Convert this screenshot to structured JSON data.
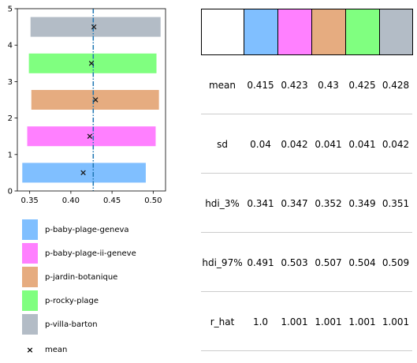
{
  "chart_data": {
    "type": "forest",
    "xlim": [
      0.335,
      0.515
    ],
    "ylim": [
      0,
      5
    ],
    "xticks": [
      "0.35",
      "0.40",
      "0.45",
      "0.50"
    ],
    "xtick_values": [
      0.35,
      0.4,
      0.45,
      0.5
    ],
    "yticks": [
      "0",
      "1",
      "2",
      "3",
      "4",
      "5"
    ],
    "ytick_values": [
      0,
      1,
      2,
      3,
      4,
      5
    ],
    "reference_line": 0.4272,
    "series": [
      {
        "name": "p-baby-plage-geneva",
        "color": "#80bfff",
        "hdi_low": 0.341,
        "hdi_high": 0.491,
        "mean": 0.415,
        "y": 0.5
      },
      {
        "name": "p-baby-plage-ii-geneve",
        "color": "#ff80ff",
        "hdi_low": 0.347,
        "hdi_high": 0.503,
        "mean": 0.423,
        "y": 1.5
      },
      {
        "name": "p-jardin-botanique",
        "color": "#e6ac80",
        "hdi_low": 0.352,
        "hdi_high": 0.507,
        "mean": 0.43,
        "y": 2.5
      },
      {
        "name": "p-rocky-plage",
        "color": "#80ff80",
        "hdi_low": 0.349,
        "hdi_high": 0.504,
        "mean": 0.425,
        "y": 3.5
      },
      {
        "name": "p-villa-barton",
        "color": "#b3bcc6",
        "hdi_low": 0.351,
        "hdi_high": 0.509,
        "mean": 0.428,
        "y": 4.5
      }
    ]
  },
  "legend": {
    "items": [
      {
        "label": "p-baby-plage-geneva",
        "color": "#80bfff"
      },
      {
        "label": "p-baby-plage-ii-geneve",
        "color": "#ff80ff"
      },
      {
        "label": "p-jardin-botanique",
        "color": "#e6ac80"
      },
      {
        "label": "p-rocky-plage",
        "color": "#80ff80"
      },
      {
        "label": "p-villa-barton",
        "color": "#b3bcc6"
      }
    ],
    "mean_label": "mean",
    "mean_marker": "×"
  },
  "table": {
    "header_colors": [
      "#ffffff",
      "#80bfff",
      "#ff80ff",
      "#e6ac80",
      "#80ff80",
      "#b3bcc6"
    ],
    "rows": [
      {
        "name": "mean",
        "values": [
          "0.415",
          "0.423",
          "0.43",
          "0.425",
          "0.428"
        ]
      },
      {
        "name": "sd",
        "values": [
          "0.04",
          "0.042",
          "0.041",
          "0.041",
          "0.042"
        ]
      },
      {
        "name": "hdi_3%",
        "values": [
          "0.341",
          "0.347",
          "0.352",
          "0.349",
          "0.351"
        ]
      },
      {
        "name": "hdi_97%",
        "values": [
          "0.491",
          "0.503",
          "0.507",
          "0.504",
          "0.509"
        ]
      },
      {
        "name": "r_hat",
        "values": [
          "1.0",
          "1.001",
          "1.001",
          "1.001",
          "1.001"
        ]
      }
    ]
  }
}
